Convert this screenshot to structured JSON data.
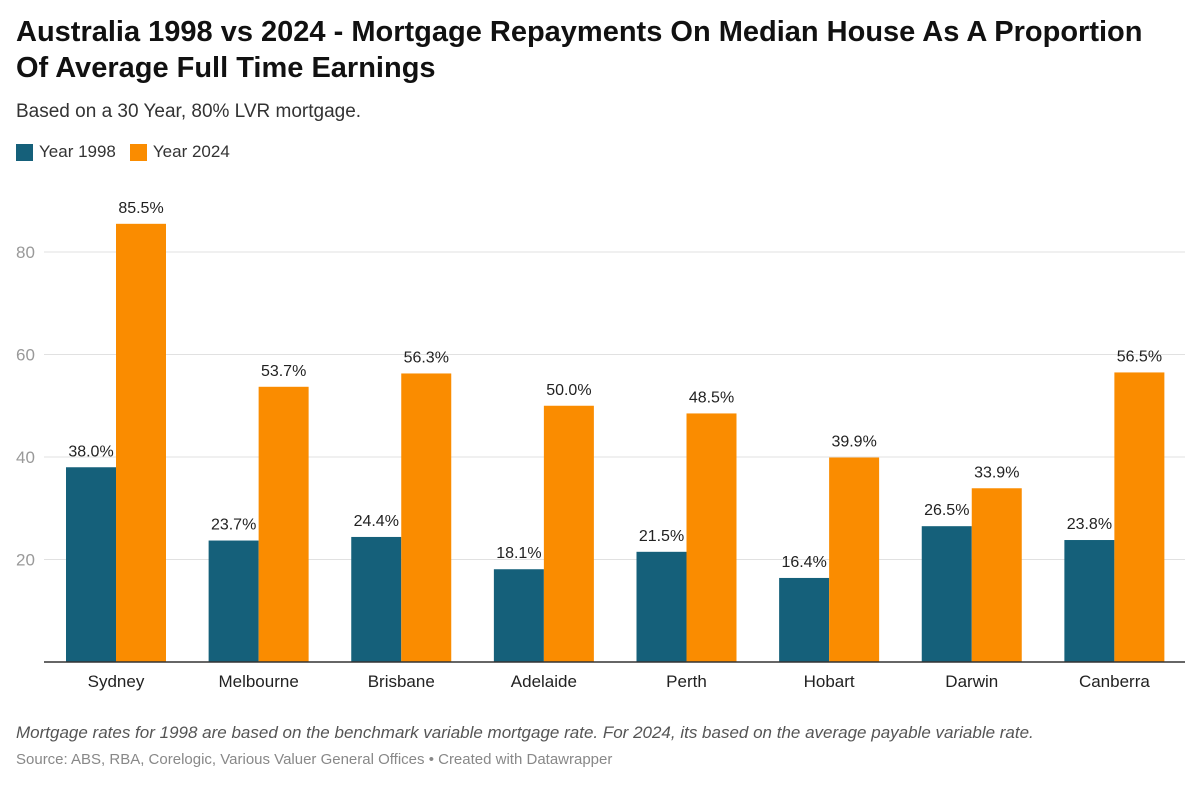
{
  "chart_data": {
    "type": "bar",
    "title": "Australia 1998 vs 2024 - Mortgage Repayments On Median House As A Proportion Of Average Full Time Earnings",
    "subtitle": "Based on a 30 Year, 80% LVR mortgage.",
    "categories": [
      "Sydney",
      "Melbourne",
      "Brisbane",
      "Adelaide",
      "Perth",
      "Hobart",
      "Darwin",
      "Canberra"
    ],
    "series": [
      {
        "name": "Year 1998",
        "color": "#15607a",
        "values": [
          38.0,
          23.7,
          24.4,
          18.1,
          21.5,
          16.4,
          26.5,
          23.8
        ],
        "labels": [
          "38.0%",
          "23.7%",
          "24.4%",
          "18.1%",
          "21.5%",
          "16.4%",
          "26.5%",
          "23.8%"
        ]
      },
      {
        "name": "Year 2024",
        "color": "#fa8c00",
        "values": [
          85.5,
          53.7,
          56.3,
          50.0,
          48.5,
          39.9,
          33.9,
          56.5
        ],
        "labels": [
          "85.5%",
          "53.7%",
          "56.3%",
          "50.0%",
          "48.5%",
          "39.9%",
          "33.9%",
          "56.5%"
        ]
      }
    ],
    "yticks": [
      "20",
      "40",
      "60",
      "80"
    ],
    "ylim": [
      0,
      90
    ],
    "grid": true,
    "legend_position": "top-left",
    "xlabel": "",
    "ylabel": ""
  },
  "footer": {
    "notes": "Mortgage rates for 1998 are based on the benchmark variable mortgage rate. For 2024, its based on the average payable variable rate.",
    "source": "Source: ABS, RBA, Corelogic, Various Valuer General Offices • Created with Datawrapper"
  }
}
